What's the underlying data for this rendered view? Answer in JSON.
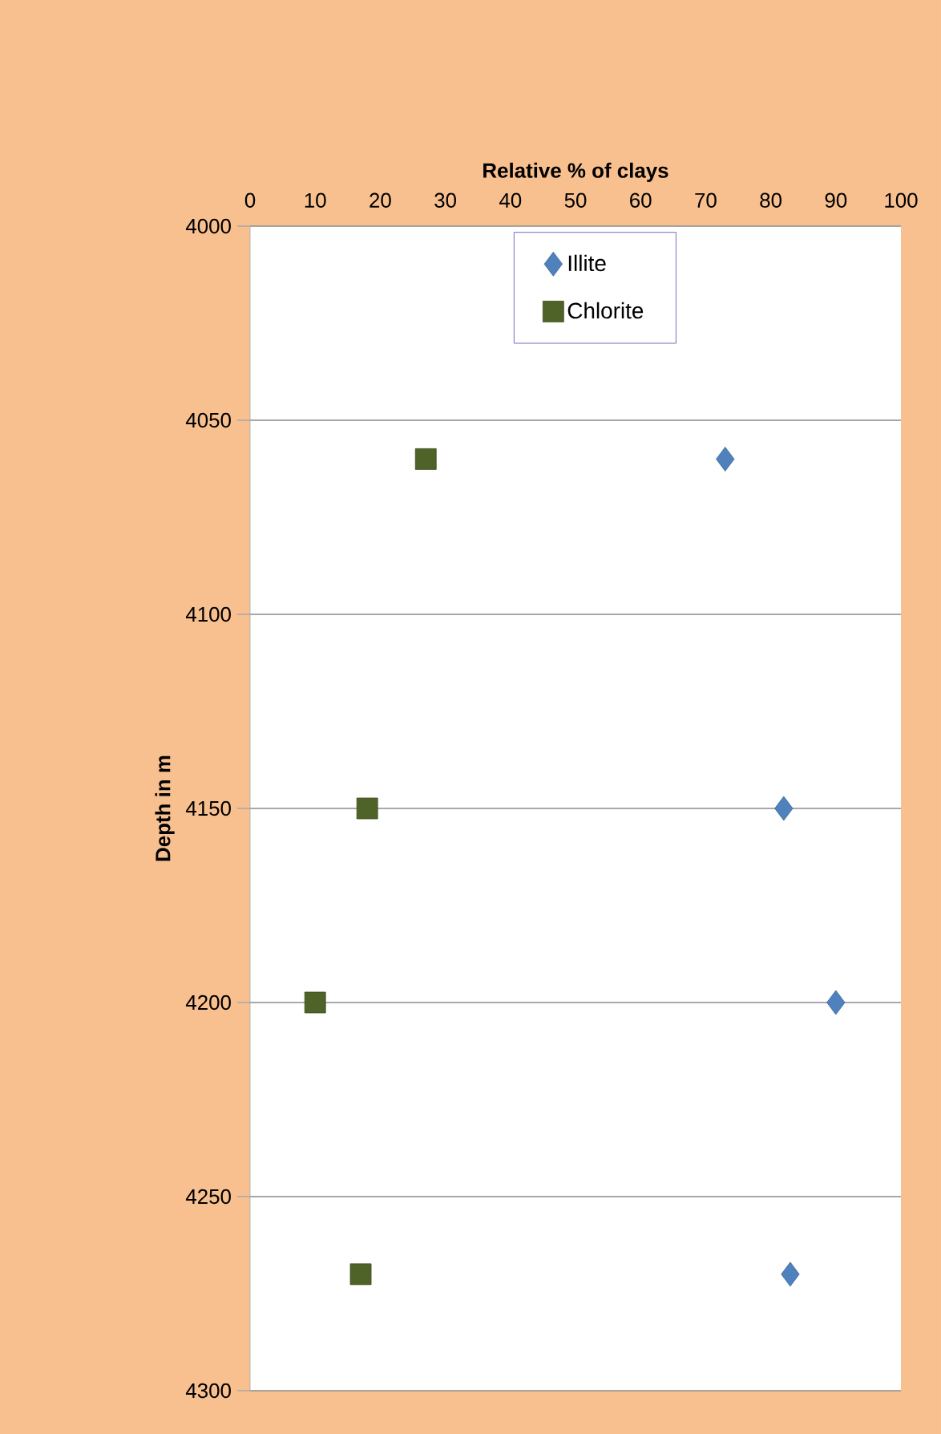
{
  "chart_data": {
    "type": "scatter",
    "xlabel": "Relative % of clays",
    "ylabel": "Depth in m",
    "xlim": [
      0,
      100
    ],
    "xticks": [
      0,
      10,
      20,
      30,
      40,
      50,
      60,
      70,
      80,
      90,
      100
    ],
    "ylim": [
      4300,
      4000
    ],
    "yticks": [
      4000,
      4050,
      4100,
      4150,
      4200,
      4250,
      4300
    ],
    "grid": "y",
    "legend": "top",
    "series": [
      {
        "name": "Illite",
        "color": "#4f81bd",
        "marker": "diamond",
        "x": [
          73,
          82,
          90,
          83
        ],
        "values": [
          4060,
          4150,
          4200,
          4270
        ]
      },
      {
        "name": "Chlorite",
        "color": "#4f6228",
        "marker": "square",
        "x": [
          27,
          18,
          10,
          17
        ],
        "values": [
          4060,
          4150,
          4200,
          4270
        ]
      }
    ]
  }
}
